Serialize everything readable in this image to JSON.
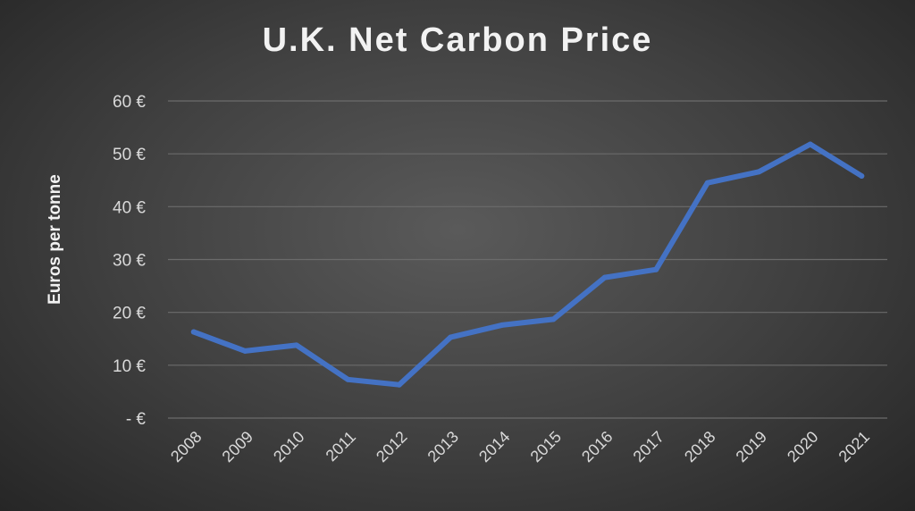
{
  "chart_data": {
    "type": "line",
    "title": "U.K. Net Carbon Price",
    "xlabel": "",
    "ylabel": "Euros per tonne",
    "categories": [
      "2008",
      "2009",
      "2010",
      "2011",
      "2012",
      "2013",
      "2014",
      "2015",
      "2016",
      "2017",
      "2018",
      "2019",
      "2020",
      "2021"
    ],
    "series": [
      {
        "values": [
          16.3,
          12.7,
          13.8,
          7.3,
          6.3,
          15.3,
          17.6,
          18.7,
          26.6,
          28.1,
          44.5,
          46.6,
          51.8,
          45.8
        ]
      }
    ],
    "ylim": [
      0,
      60
    ],
    "yticks": [
      0,
      10,
      20,
      30,
      40,
      50,
      60
    ],
    "ytick_labels": [
      "- €",
      "10 €",
      "20 €",
      "30 €",
      "40 €",
      "50 €",
      "60 €"
    ],
    "grid": true,
    "legend": "none",
    "colors": {
      "line": "#4472c4",
      "grid": "#6b6b6b",
      "text": "#d9d9d9"
    }
  }
}
